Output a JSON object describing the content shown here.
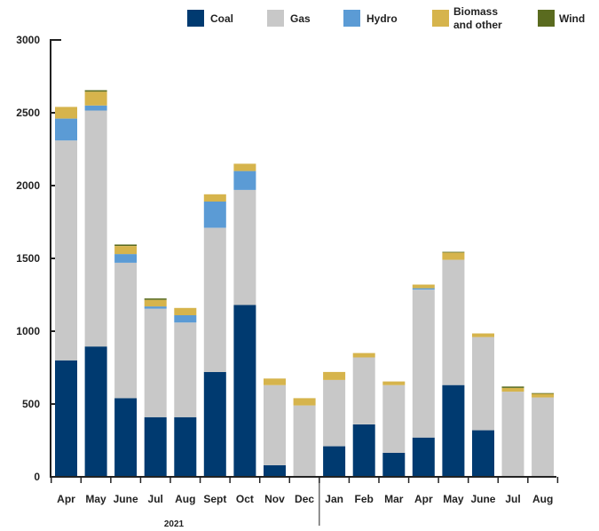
{
  "chart_data": {
    "type": "bar",
    "stacked": true,
    "categories": [
      "Apr",
      "May",
      "June",
      "Jul",
      "Aug",
      "Sept",
      "Oct",
      "Nov",
      "Dec",
      "Jan",
      "Feb",
      "Mar",
      "Apr",
      "May",
      "June",
      "Jul",
      "Aug"
    ],
    "year_label": "2021",
    "ylim": [
      0,
      3000
    ],
    "yticks": [
      "0",
      "500",
      "1000",
      "1500",
      "2000",
      "2500",
      "3000"
    ],
    "legend_position": "top",
    "series": [
      {
        "name": "Coal",
        "color": "#003a70",
        "values": [
          800,
          895,
          540,
          410,
          410,
          720,
          1180,
          80,
          0,
          210,
          360,
          165,
          270,
          630,
          320,
          0,
          0
        ]
      },
      {
        "name": "Gas",
        "color": "#c8c8c8",
        "values": [
          1510,
          1620,
          930,
          745,
          650,
          990,
          790,
          550,
          490,
          455,
          460,
          465,
          1015,
          860,
          640,
          585,
          545
        ]
      },
      {
        "name": "Hydro",
        "color": "#5b9bd5",
        "values": [
          150,
          35,
          60,
          15,
          50,
          180,
          130,
          0,
          0,
          0,
          0,
          0,
          10,
          0,
          0,
          0,
          0
        ]
      },
      {
        "name": "Biomass and other",
        "label_lines": [
          "Biomass",
          "and other"
        ],
        "color": "#d6b44c",
        "values": [
          80,
          95,
          55,
          45,
          50,
          50,
          50,
          45,
          50,
          55,
          30,
          25,
          25,
          50,
          25,
          25,
          25
        ]
      },
      {
        "name": "Wind",
        "color": "#5a6b1f",
        "values": [
          0,
          10,
          10,
          10,
          0,
          0,
          0,
          0,
          0,
          0,
          0,
          0,
          0,
          5,
          0,
          10,
          5
        ]
      }
    ]
  }
}
